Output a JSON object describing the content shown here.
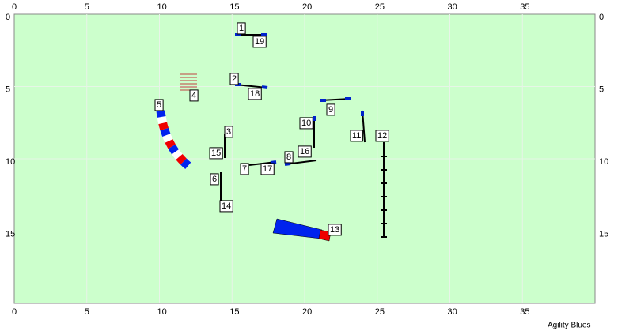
{
  "axes": {
    "top": [
      0,
      5,
      10,
      15,
      20,
      25,
      30,
      35
    ],
    "bottom": [
      0,
      5,
      10,
      15,
      20,
      25,
      30,
      35
    ],
    "left": [
      0,
      5,
      10,
      15
    ],
    "right": [
      0,
      5,
      10,
      15
    ]
  },
  "markers": [
    "1",
    "2",
    "3",
    "4",
    "5",
    "6",
    "7",
    "8",
    "9",
    "10",
    "11",
    "12",
    "13",
    "14",
    "15",
    "16",
    "17",
    "18",
    "19"
  ],
  "footer": "Agility Blues"
}
